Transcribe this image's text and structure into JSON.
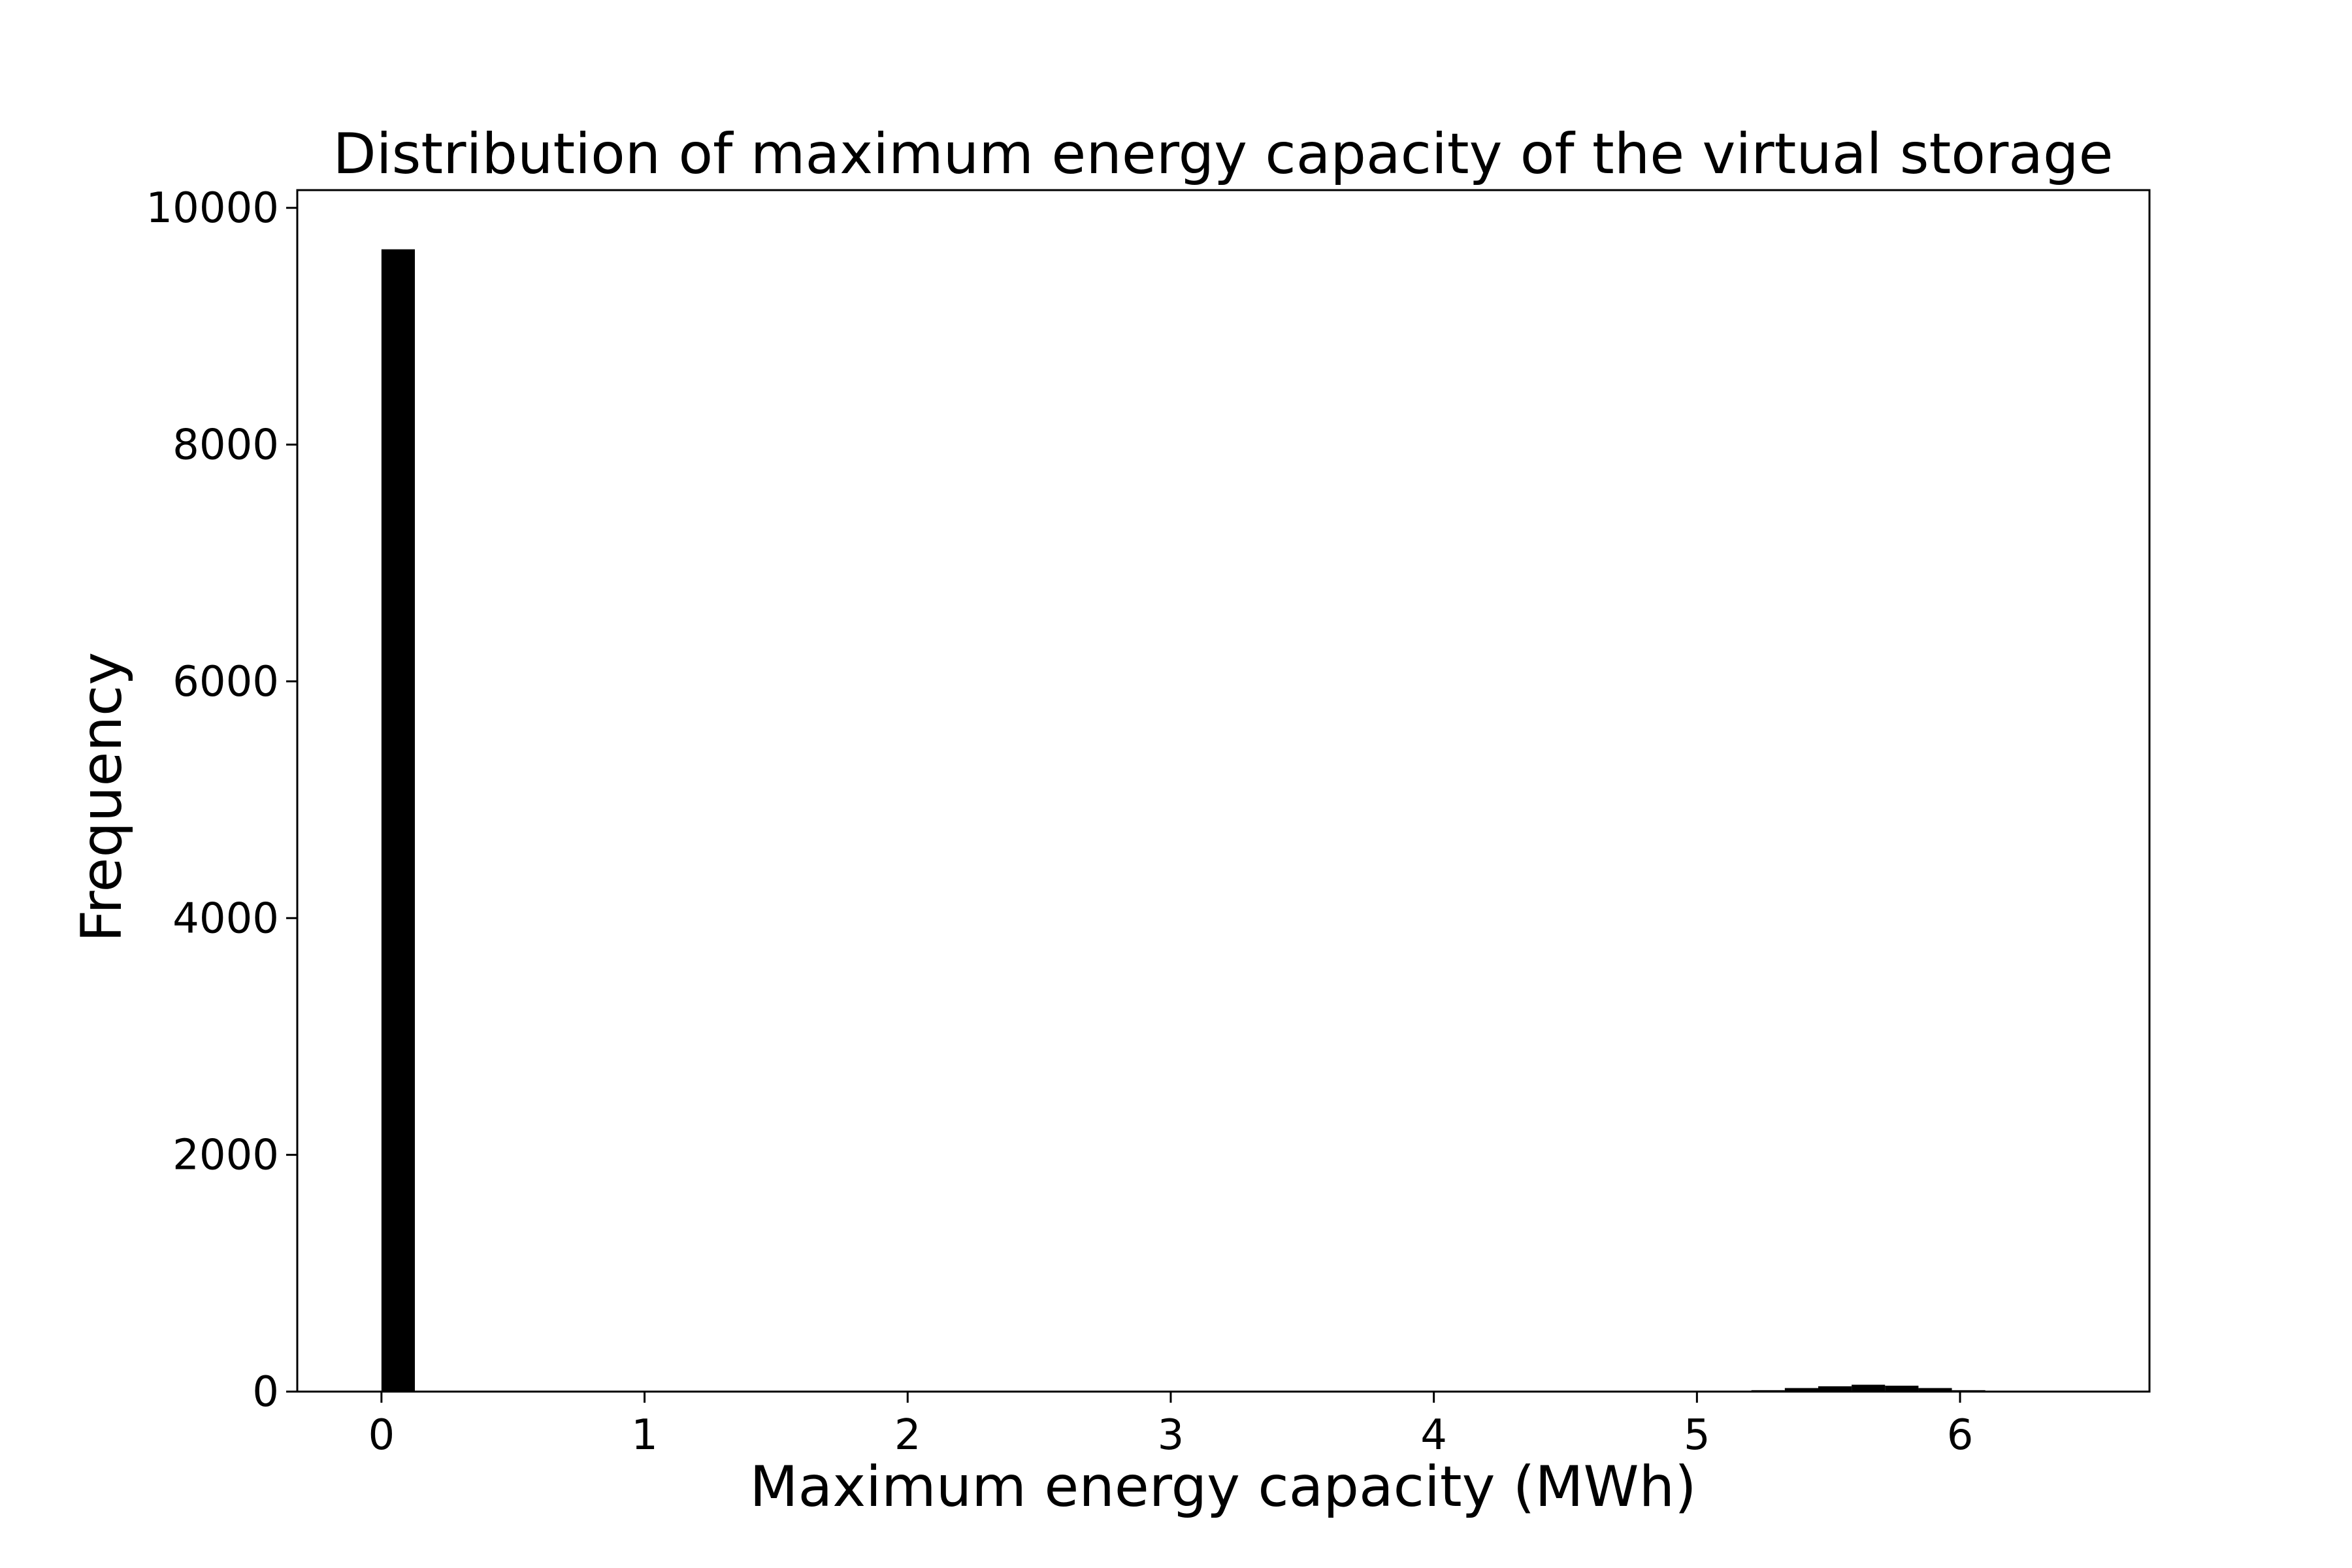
{
  "chart_data": {
    "type": "bar",
    "title": "Distribution of maximum energy capacity of the virtual storage",
    "xlabel": "Maximum energy capacity (MWh)",
    "ylabel": "Frequency",
    "xlim": [
      -0.32,
      6.72
    ],
    "ylim": [
      0,
      10150
    ],
    "xticks": [
      0,
      1,
      2,
      3,
      4,
      5,
      6
    ],
    "yticks": [
      0,
      2000,
      4000,
      6000,
      8000,
      10000
    ],
    "grid": false,
    "legend": "none",
    "bar_color": "#000000",
    "bin_width": 0.127,
    "bins": [
      {
        "x0": 0.0,
        "x1": 0.127,
        "count": 9650
      },
      {
        "x0": 5.08,
        "x1": 5.207,
        "count": 3
      },
      {
        "x0": 5.207,
        "x1": 5.334,
        "count": 12
      },
      {
        "x0": 5.334,
        "x1": 5.461,
        "count": 30
      },
      {
        "x0": 5.461,
        "x1": 5.588,
        "count": 45
      },
      {
        "x0": 5.588,
        "x1": 5.715,
        "count": 58
      },
      {
        "x0": 5.715,
        "x1": 5.842,
        "count": 50
      },
      {
        "x0": 5.842,
        "x1": 5.969,
        "count": 30
      },
      {
        "x0": 5.969,
        "x1": 6.096,
        "count": 12
      },
      {
        "x0": 6.096,
        "x1": 6.223,
        "count": 4
      }
    ]
  }
}
